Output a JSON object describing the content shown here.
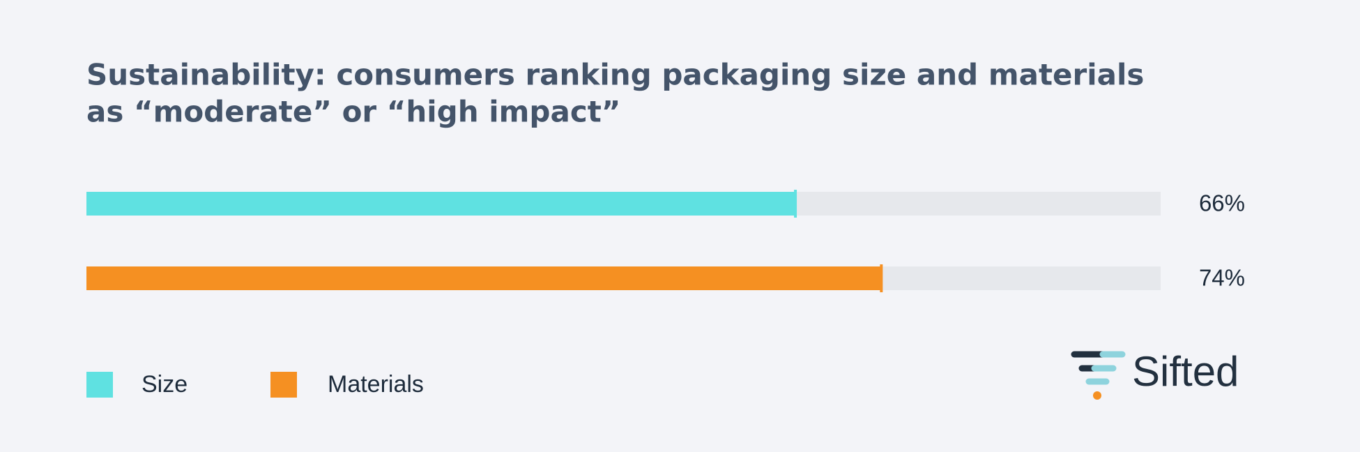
{
  "chart_data": {
    "type": "bar",
    "orientation": "horizontal",
    "title": [
      "Sustainability: consumers ranking packaging size and materials",
      "as “moderate” or “high impact”"
    ],
    "series": [
      {
        "name": "Size",
        "color": "#5fe1e1",
        "values": [
          66
        ],
        "value_labels": [
          "66%"
        ]
      },
      {
        "name": "Materials",
        "color": "#f59022",
        "values": [
          74
        ],
        "value_labels": [
          "74%"
        ]
      }
    ],
    "xlim": [
      0,
      100
    ],
    "brand": "Sifted"
  }
}
